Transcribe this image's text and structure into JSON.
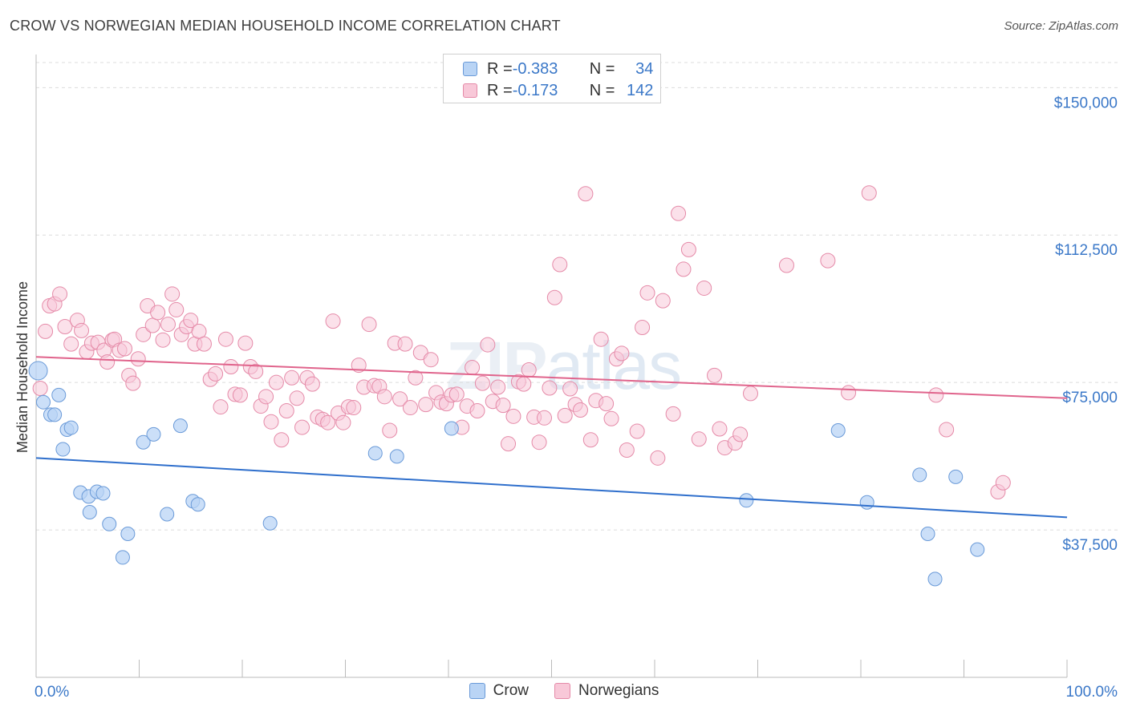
{
  "title": "CROW VS NORWEGIAN MEDIAN HOUSEHOLD INCOME CORRELATION CHART",
  "source": "Source: ZipAtlas.com",
  "watermark": {
    "zip": "ZIP",
    "atlas": "atlas"
  },
  "legend": {
    "rows": [
      {
        "r_label": "R = ",
        "r_value": "-0.383",
        "n_label": "N = ",
        "n_value": "34"
      },
      {
        "r_label": "R = ",
        "r_value": "-0.173",
        "n_label": "N = ",
        "n_value": "142"
      }
    ]
  },
  "colors": {
    "crow_fill": "#b9d4f5",
    "crow_stroke": "#6a9ad8",
    "crow_line": "#2f6fcc",
    "norw_fill": "#f8c8d8",
    "norw_stroke": "#e58aa8",
    "norw_line": "#e0648c",
    "axis_label": "#3b78c8",
    "grid": "#dcdcdc"
  },
  "chart_data": {
    "type": "scatter",
    "title": "CROW VS NORWEGIAN MEDIAN HOUSEHOLD INCOME CORRELATION CHART",
    "xlabel": "",
    "ylabel": "Median Household Income",
    "xlim": [
      0,
      100
    ],
    "ylim": [
      0,
      157000
    ],
    "x_tick_labels": [
      "0.0%",
      "100.0%"
    ],
    "y_ticks": [
      37500,
      75000,
      112500,
      150000
    ],
    "y_tick_labels": [
      "$37,500",
      "$75,000",
      "$112,500",
      "$150,000"
    ],
    "grid": true,
    "legend_position": "bottom-center",
    "series": [
      {
        "name": "Crow",
        "r": -0.383,
        "n": 34,
        "trend": {
          "x": [
            0,
            100
          ],
          "y": [
            55800,
            40700
          ]
        },
        "points": [
          [
            0.2,
            78000
          ],
          [
            0.7,
            70000
          ],
          [
            1.4,
            66800
          ],
          [
            1.8,
            66800
          ],
          [
            2.2,
            71800
          ],
          [
            2.6,
            58000
          ],
          [
            3.0,
            63000
          ],
          [
            3.4,
            63500
          ],
          [
            4.3,
            47000
          ],
          [
            5.1,
            46000
          ],
          [
            5.2,
            42000
          ],
          [
            5.9,
            47200
          ],
          [
            6.5,
            46800
          ],
          [
            7.1,
            39000
          ],
          [
            8.4,
            30500
          ],
          [
            8.9,
            36500
          ],
          [
            10.4,
            59800
          ],
          [
            11.4,
            61800
          ],
          [
            12.7,
            41500
          ],
          [
            14.0,
            64000
          ],
          [
            15.2,
            44800
          ],
          [
            15.7,
            44000
          ],
          [
            22.7,
            39200
          ],
          [
            32.9,
            57000
          ],
          [
            35.0,
            56200
          ],
          [
            40.3,
            63300
          ],
          [
            68.9,
            45000
          ],
          [
            77.8,
            62800
          ],
          [
            80.6,
            44500
          ],
          [
            85.7,
            51500
          ],
          [
            86.5,
            36500
          ],
          [
            87.2,
            25000
          ],
          [
            89.2,
            51000
          ],
          [
            91.3,
            32500
          ]
        ],
        "point_sizes": [
          12,
          9,
          9,
          9,
          9,
          9,
          9,
          9,
          9,
          9,
          9,
          9,
          9,
          9,
          9,
          9,
          9,
          9,
          9,
          9,
          9,
          9,
          9,
          9,
          9,
          9,
          9,
          9,
          9,
          9,
          9,
          9,
          9,
          9
        ]
      },
      {
        "name": "Norwegians",
        "r": -0.173,
        "n": 142,
        "trend": {
          "x": [
            0,
            100
          ],
          "y": [
            81500,
            71000
          ]
        },
        "points": [
          [
            0.4,
            73500
          ],
          [
            0.9,
            88000
          ],
          [
            1.3,
            94500
          ],
          [
            1.8,
            95000
          ],
          [
            2.3,
            97500
          ],
          [
            2.8,
            89200
          ],
          [
            3.4,
            84800
          ],
          [
            4.0,
            90800
          ],
          [
            4.4,
            88200
          ],
          [
            4.9,
            82800
          ],
          [
            5.4,
            85000
          ],
          [
            6.0,
            85200
          ],
          [
            6.6,
            83200
          ],
          [
            6.9,
            80200
          ],
          [
            7.4,
            85800
          ],
          [
            7.6,
            86000
          ],
          [
            8.1,
            83200
          ],
          [
            8.6,
            83600
          ],
          [
            9.0,
            76800
          ],
          [
            9.4,
            74800
          ],
          [
            9.9,
            81000
          ],
          [
            10.4,
            87200
          ],
          [
            10.8,
            94500
          ],
          [
            11.3,
            89500
          ],
          [
            11.8,
            92800
          ],
          [
            12.3,
            85800
          ],
          [
            12.8,
            89800
          ],
          [
            13.2,
            97500
          ],
          [
            13.6,
            93500
          ],
          [
            14.1,
            87200
          ],
          [
            14.6,
            89200
          ],
          [
            15.0,
            90800
          ],
          [
            15.4,
            84800
          ],
          [
            15.8,
            88000
          ],
          [
            16.3,
            84800
          ],
          [
            16.9,
            75800
          ],
          [
            17.4,
            77200
          ],
          [
            17.9,
            68800
          ],
          [
            18.4,
            86000
          ],
          [
            18.9,
            79000
          ],
          [
            19.3,
            72000
          ],
          [
            19.8,
            71800
          ],
          [
            20.3,
            85000
          ],
          [
            20.8,
            79000
          ],
          [
            21.3,
            77800
          ],
          [
            21.8,
            69000
          ],
          [
            22.3,
            71400
          ],
          [
            22.8,
            65000
          ],
          [
            23.3,
            75000
          ],
          [
            23.8,
            60400
          ],
          [
            24.3,
            67800
          ],
          [
            24.8,
            76200
          ],
          [
            25.3,
            71000
          ],
          [
            25.8,
            63600
          ],
          [
            26.3,
            76200
          ],
          [
            26.8,
            74600
          ],
          [
            27.3,
            66200
          ],
          [
            27.8,
            65600
          ],
          [
            28.3,
            64800
          ],
          [
            28.8,
            90600
          ],
          [
            29.3,
            67200
          ],
          [
            29.8,
            64800
          ],
          [
            30.3,
            68800
          ],
          [
            30.8,
            68600
          ],
          [
            31.3,
            79400
          ],
          [
            31.8,
            73800
          ],
          [
            32.3,
            89800
          ],
          [
            32.8,
            74200
          ],
          [
            33.3,
            74000
          ],
          [
            33.8,
            71400
          ],
          [
            34.3,
            62800
          ],
          [
            34.8,
            85000
          ],
          [
            35.3,
            70800
          ],
          [
            35.8,
            84800
          ],
          [
            36.3,
            68600
          ],
          [
            36.8,
            76200
          ],
          [
            37.3,
            82600
          ],
          [
            37.8,
            69400
          ],
          [
            38.3,
            80800
          ],
          [
            38.8,
            72400
          ],
          [
            39.3,
            70000
          ],
          [
            39.8,
            69600
          ],
          [
            40.3,
            71800
          ],
          [
            40.8,
            72000
          ],
          [
            41.3,
            63600
          ],
          [
            41.8,
            69000
          ],
          [
            42.3,
            78800
          ],
          [
            42.8,
            67800
          ],
          [
            43.3,
            74800
          ],
          [
            43.8,
            84600
          ],
          [
            44.3,
            70200
          ],
          [
            44.8,
            73800
          ],
          [
            45.3,
            69200
          ],
          [
            45.8,
            59400
          ],
          [
            46.3,
            66400
          ],
          [
            46.8,
            75200
          ],
          [
            47.3,
            74600
          ],
          [
            47.8,
            78200
          ],
          [
            48.3,
            66200
          ],
          [
            48.8,
            59800
          ],
          [
            49.3,
            66000
          ],
          [
            49.8,
            73600
          ],
          [
            50.3,
            96600
          ],
          [
            50.8,
            105000
          ],
          [
            51.3,
            66600
          ],
          [
            51.8,
            73400
          ],
          [
            52.3,
            69400
          ],
          [
            52.8,
            68000
          ],
          [
            53.3,
            123000
          ],
          [
            53.8,
            60400
          ],
          [
            54.3,
            70400
          ],
          [
            54.8,
            86000
          ],
          [
            55.3,
            69600
          ],
          [
            55.8,
            65800
          ],
          [
            56.3,
            81000
          ],
          [
            56.8,
            82400
          ],
          [
            57.3,
            57800
          ],
          [
            58.3,
            62600
          ],
          [
            58.8,
            89000
          ],
          [
            59.3,
            97800
          ],
          [
            60.3,
            55800
          ],
          [
            60.8,
            95800
          ],
          [
            61.8,
            67000
          ],
          [
            62.3,
            118000
          ],
          [
            62.8,
            103800
          ],
          [
            63.3,
            108800
          ],
          [
            64.3,
            60600
          ],
          [
            64.8,
            99000
          ],
          [
            65.8,
            76800
          ],
          [
            66.3,
            63200
          ],
          [
            66.8,
            58400
          ],
          [
            67.8,
            59600
          ],
          [
            68.3,
            61800
          ],
          [
            69.3,
            72200
          ],
          [
            72.8,
            104800
          ],
          [
            76.8,
            106000
          ],
          [
            78.8,
            72400
          ],
          [
            80.8,
            123200
          ],
          [
            87.3,
            71800
          ],
          [
            88.3,
            63000
          ],
          [
            93.3,
            47200
          ],
          [
            93.8,
            49500
          ]
        ],
        "point_sizes": [
          16
        ]
      }
    ]
  }
}
